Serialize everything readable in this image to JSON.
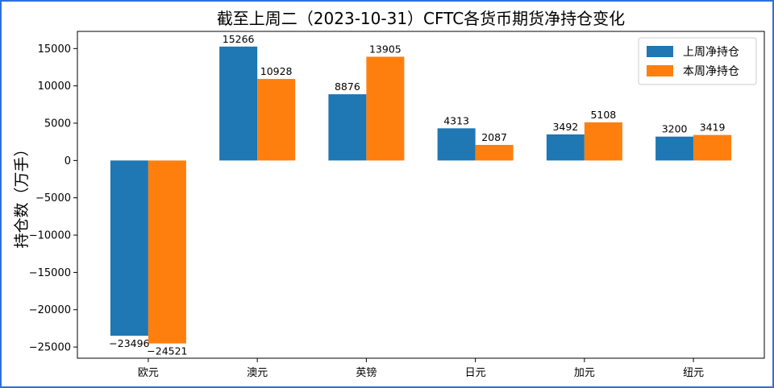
{
  "chart_data": {
    "type": "bar",
    "title": "截至上周二（2023-10-31）CFTC各货币期货净持仓变化",
    "xlabel": "",
    "ylabel": "持仓数（万手）",
    "categories": [
      "欧元",
      "澳元",
      "英镑",
      "日元",
      "加元",
      "纽元"
    ],
    "series": [
      {
        "name": "上周净持仓",
        "color": "#1f77b4",
        "values": [
          -23496,
          15266,
          8876,
          4313,
          3492,
          3200
        ]
      },
      {
        "name": "本周净持仓",
        "color": "#ff7f0e",
        "values": [
          -24521,
          10928,
          13905,
          2087,
          5108,
          3419
        ]
      }
    ],
    "ylim": [
      -26500,
      17300
    ],
    "yticks": [
      -25000,
      -20000,
      -15000,
      -10000,
      -5000,
      0,
      5000,
      10000,
      15000
    ],
    "legend_position": "top-right",
    "grid": false
  }
}
